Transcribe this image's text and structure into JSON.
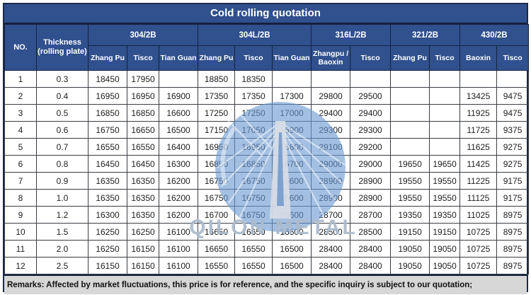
{
  "title": "Cold rolling quotation",
  "colors": {
    "header_bg": "#30508e",
    "outer_border": "#1b2a4a",
    "grid_border": "#3a3d44",
    "remarks_bg": "#d7d7d7",
    "watermark_circle": "#6a9ad2",
    "watermark_text_color": "#adbacb"
  },
  "table": {
    "corner_headers": {
      "no": "NO.",
      "thickness_line1": "Thickness",
      "thickness_line2": "(rolling plate)"
    },
    "groups": [
      {
        "label": "304/2B",
        "subs": [
          "Zhang Pu",
          "Tisco",
          "Tian Guan"
        ]
      },
      {
        "label": "304L/2B",
        "subs": [
          "Zhang Pu",
          "Tisco",
          "Tian Guan"
        ]
      },
      {
        "label": "316L/2B",
        "subs": [
          "Zhangpu / Baoxin",
          "Tisco"
        ]
      },
      {
        "label": "321/2B",
        "subs": [
          "Zhang Pu",
          "Tisco"
        ]
      },
      {
        "label": "430/2B",
        "subs": [
          "Baoxin",
          "Tisco"
        ]
      }
    ],
    "rows": [
      {
        "no": "1",
        "thickness": "0.3",
        "values": [
          "18450",
          "17950",
          "",
          "18850",
          "18350",
          "",
          "",
          "",
          "",
          "",
          "",
          ""
        ]
      },
      {
        "no": "2",
        "thickness": "0.4",
        "values": [
          "16950",
          "16950",
          "16900",
          "17350",
          "17350",
          "17300",
          "29800",
          "29500",
          "",
          "",
          "13425",
          "9475"
        ]
      },
      {
        "no": "3",
        "thickness": "0.5",
        "values": [
          "16850",
          "16850",
          "16600",
          "17250",
          "17250",
          "17000",
          "29400",
          "29400",
          "",
          "",
          "11925",
          "9475"
        ]
      },
      {
        "no": "4",
        "thickness": "0.6",
        "values": [
          "16750",
          "16650",
          "16500",
          "17150",
          "17050",
          "16900",
          "29300",
          "29300",
          "",
          "",
          "11725",
          "9375"
        ]
      },
      {
        "no": "5",
        "thickness": "0.7",
        "values": [
          "16550",
          "16550",
          "16400",
          "16950",
          "16950",
          "16800",
          "29100",
          "29200",
          "",
          "",
          "11625",
          "9275"
        ]
      },
      {
        "no": "6",
        "thickness": "0.8",
        "values": [
          "16450",
          "16450",
          "16300",
          "16850",
          "16850",
          "16700",
          "29000",
          "29000",
          "19650",
          "19650",
          "11425",
          "9275"
        ]
      },
      {
        "no": "7",
        "thickness": "0.9",
        "values": [
          "16350",
          "16350",
          "16200",
          "16750",
          "16750",
          "16600",
          "28900",
          "28900",
          "19550",
          "19550",
          "11225",
          "9175"
        ]
      },
      {
        "no": "8",
        "thickness": "1.0",
        "values": [
          "16350",
          "16350",
          "16200",
          "16750",
          "16750",
          "16600",
          "28900",
          "28900",
          "19550",
          "19550",
          "11125",
          "9175"
        ]
      },
      {
        "no": "9",
        "thickness": "1.2",
        "values": [
          "16300",
          "16350",
          "16200",
          "16700",
          "16750",
          "16600",
          "28700",
          "28700",
          "19350",
          "19350",
          "11025",
          "8975"
        ]
      },
      {
        "no": "10",
        "thickness": "1.5",
        "values": [
          "16250",
          "16250",
          "16100",
          "16650",
          "16650",
          "16500",
          "28500",
          "28500",
          "19150",
          "19150",
          "10725",
          "8975"
        ]
      },
      {
        "no": "11",
        "thickness": "2.0",
        "values": [
          "16250",
          "16150",
          "16100",
          "16650",
          "16550",
          "16500",
          "28400",
          "28400",
          "19050",
          "19050",
          "10725",
          "8975"
        ]
      },
      {
        "no": "12",
        "thickness": "2.5",
        "values": [
          "16150",
          "16150",
          "16100",
          "16550",
          "16550",
          "16500",
          "28400",
          "28400",
          "19050",
          "19050",
          "10725",
          "8975"
        ]
      }
    ]
  },
  "watermark": {
    "text": "QILON METAL"
  },
  "remarks": "Remarks: Affected by market fluctuations, this price is for reference, and the specific inquiry is subject to our quotation;"
}
